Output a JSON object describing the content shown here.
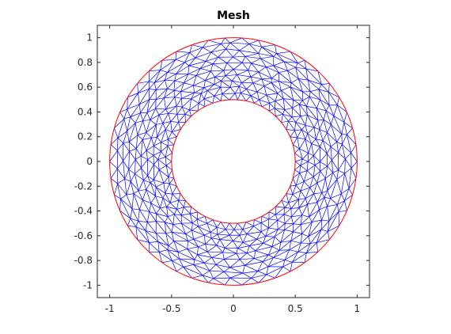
{
  "chart_data": {
    "type": "mesh",
    "title": "Mesh",
    "xlabel": "",
    "ylabel": "",
    "xlim": [
      -1.1,
      1.1
    ],
    "ylim": [
      -1.1,
      1.1
    ],
    "xticks": [
      -1,
      -0.5,
      0,
      0.5,
      1
    ],
    "xtick_labels": [
      "-1",
      "-0.5",
      "0",
      "0.5",
      "1"
    ],
    "yticks": [
      1,
      0.8,
      0.6,
      0.4,
      0.2,
      0,
      -0.2,
      -0.4,
      -0.6,
      -0.8,
      -1
    ],
    "ytick_labels": [
      "1",
      "0.8",
      "0.6",
      "0.4",
      "0.2",
      "0",
      "-0.2",
      "-0.4",
      "-0.6",
      "-0.8",
      "-1"
    ],
    "grid": false,
    "geometry": {
      "shape": "annulus",
      "center": [
        0,
        0
      ],
      "inner_radius": 0.5,
      "outer_radius": 1.0
    },
    "mesh": {
      "element": "triangle",
      "radial_layers": 10,
      "nodes_per_ring": 46
    },
    "colors": {
      "mesh_edges": "#0000ff",
      "boundary": "#ff0000",
      "axes": "#262626",
      "background": "#ffffff"
    }
  }
}
